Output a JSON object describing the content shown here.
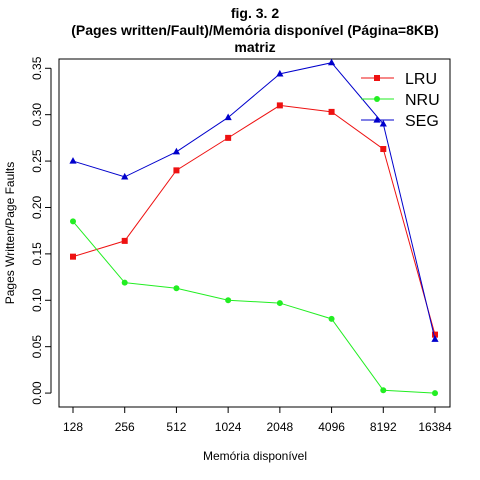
{
  "chart_data": {
    "type": "line",
    "title": [
      "fig. 3. 2",
      "(Pages written/Fault)/Memória disponível (Página=8KB)",
      "matriz"
    ],
    "xlabel": "Memória disponível",
    "ylabel": "Pages Written/Page Faults",
    "categories": [
      "128",
      "256",
      "512",
      "1024",
      "2048",
      "4096",
      "8192",
      "16384"
    ],
    "y_ticks": [
      "0.00",
      "0.05",
      "0.10",
      "0.15",
      "0.20",
      "0.25",
      "0.30",
      "0.35"
    ],
    "ylim": [
      -0.015,
      0.36
    ],
    "grid": false,
    "legend_position": "top-right",
    "series": [
      {
        "name": "LRU",
        "color": "#ee1111",
        "marker": "square",
        "values": [
          0.147,
          0.164,
          0.24,
          0.275,
          0.31,
          0.303,
          0.263,
          0.063
        ]
      },
      {
        "name": "NRU",
        "color": "#22ee22",
        "marker": "circle",
        "values": [
          0.185,
          0.119,
          0.113,
          0.1,
          0.097,
          0.08,
          0.003,
          0.0
        ]
      },
      {
        "name": "SEG",
        "color": "#0000cc",
        "marker": "triangle",
        "values": [
          0.25,
          0.233,
          0.26,
          0.297,
          0.344,
          0.356,
          0.29,
          0.058
        ]
      }
    ]
  }
}
